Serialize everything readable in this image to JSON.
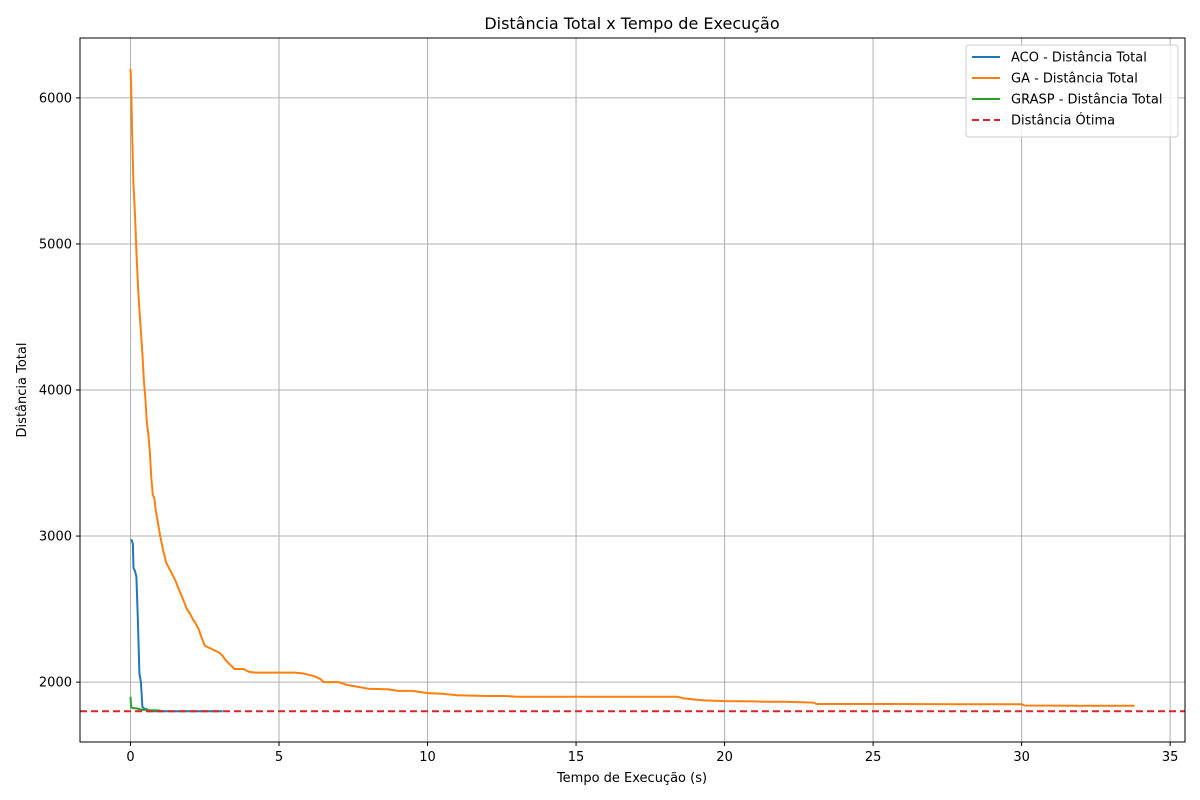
{
  "chart_data": {
    "type": "line",
    "title": "Distância Total x Tempo de Execução",
    "xlabel": "Tempo de Execução (s)",
    "ylabel": "Distância Total",
    "xlim": [
      -1.7,
      35.5
    ],
    "ylim": [
      1590,
      6410
    ],
    "xticks": [
      0,
      5,
      10,
      15,
      20,
      25,
      30,
      35
    ],
    "yticks": [
      2000,
      3000,
      4000,
      5000,
      6000
    ],
    "grid": true,
    "legend_position": "top-right",
    "series": [
      {
        "name": "ACO - Distância Total",
        "color": "#1f77b4",
        "dashed": false,
        "x": [
          0.0,
          0.05,
          0.08,
          0.1,
          0.15,
          0.2,
          0.25,
          0.3,
          0.35,
          0.4,
          0.45,
          0.5,
          0.55,
          0.6,
          0.7,
          0.8,
          1.0,
          1.5,
          2.0,
          2.5,
          3.0,
          3.1
        ],
        "y": [
          2970,
          2970,
          2940,
          2780,
          2760,
          2720,
          2420,
          2060,
          2000,
          1830,
          1820,
          1815,
          1815,
          1800,
          1800,
          1800,
          1800,
          1800,
          1800,
          1800,
          1800,
          1800
        ]
      },
      {
        "name": "GA - Distância Total",
        "color": "#ff7f0e",
        "dashed": false,
        "x": [
          0.0,
          0.02,
          0.05,
          0.08,
          0.1,
          0.15,
          0.2,
          0.25,
          0.3,
          0.35,
          0.4,
          0.45,
          0.5,
          0.55,
          0.6,
          0.65,
          0.7,
          0.75,
          0.8,
          0.85,
          0.9,
          0.95,
          1.0,
          1.05,
          1.1,
          1.15,
          1.2,
          1.3,
          1.4,
          1.5,
          1.6,
          1.7,
          1.8,
          1.9,
          2.0,
          2.1,
          2.2,
          2.3,
          2.4,
          2.5,
          2.6,
          2.7,
          2.8,
          2.9,
          3.0,
          3.1,
          3.2,
          3.3,
          3.4,
          3.5,
          3.8,
          4.0,
          4.2,
          4.5,
          5.0,
          5.5,
          5.8,
          6.0,
          6.2,
          6.4,
          6.5,
          7.0,
          7.3,
          7.6,
          8.0,
          8.7,
          9.0,
          9.5,
          10.0,
          10.5,
          11.0,
          12.0,
          12.6,
          13.0,
          15.0,
          17.0,
          18.4,
          18.6,
          19.0,
          19.3,
          20.0,
          21.0,
          21.3,
          22.0,
          23.0,
          23.1,
          25.0,
          28.0,
          30.0,
          30.1,
          32.0,
          33.8
        ],
        "y": [
          6200,
          6100,
          5800,
          5550,
          5400,
          5200,
          4950,
          4720,
          4550,
          4400,
          4250,
          4060,
          3950,
          3780,
          3700,
          3580,
          3400,
          3280,
          3260,
          3180,
          3120,
          3060,
          3000,
          2950,
          2900,
          2860,
          2820,
          2780,
          2740,
          2700,
          2650,
          2600,
          2550,
          2500,
          2470,
          2430,
          2400,
          2360,
          2300,
          2250,
          2240,
          2230,
          2220,
          2210,
          2200,
          2180,
          2150,
          2130,
          2110,
          2090,
          2090,
          2070,
          2065,
          2065,
          2065,
          2065,
          2060,
          2050,
          2040,
          2020,
          2000,
          2000,
          1980,
          1970,
          1955,
          1950,
          1940,
          1940,
          1925,
          1920,
          1910,
          1905,
          1905,
          1900,
          1900,
          1900,
          1900,
          1890,
          1880,
          1875,
          1870,
          1868,
          1865,
          1865,
          1860,
          1850,
          1850,
          1848,
          1848,
          1840,
          1838,
          1838
        ]
      },
      {
        "name": "GRASP - Distância Total",
        "color": "#2ca02c",
        "dashed": false,
        "x": [
          0.0,
          0.02,
          0.05,
          0.1,
          0.2,
          0.3,
          0.4,
          0.5,
          0.6,
          0.8,
          1.0,
          1.05
        ],
        "y": [
          1900,
          1830,
          1825,
          1822,
          1820,
          1815,
          1810,
          1810,
          1808,
          1808,
          1805,
          1800
        ]
      },
      {
        "name": "Distância Ótima",
        "color": "#d62728",
        "dashed": true,
        "x": [
          -1.7,
          35.5
        ],
        "y": [
          1800,
          1800
        ]
      }
    ]
  }
}
